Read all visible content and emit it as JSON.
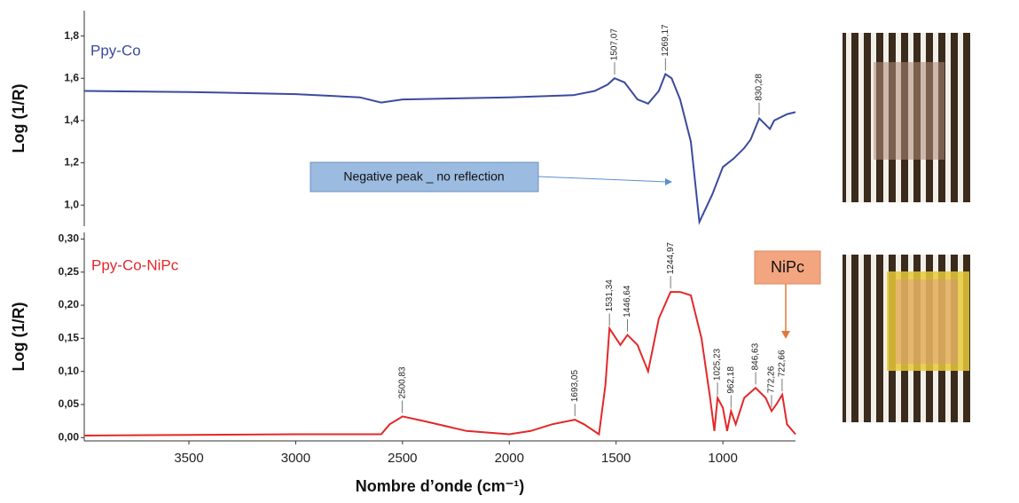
{
  "chart_data": [
    {
      "type": "line",
      "y_label": "Log (1/R)",
      "xlim": [
        3990,
        660
      ],
      "ylim": [
        0.9,
        1.92
      ],
      "yticks": [
        {
          "value": 1.0,
          "label": "1,0"
        },
        {
          "value": 1.2,
          "label": "1,2"
        },
        {
          "value": 1.4,
          "label": "1,4"
        },
        {
          "value": 1.6,
          "label": "1,6"
        },
        {
          "value": 1.8,
          "label": "1,8"
        }
      ],
      "x": [
        3990,
        3500,
        3000,
        2700,
        2600,
        2500,
        2000,
        1700,
        1600,
        1540,
        1507,
        1460,
        1400,
        1350,
        1300,
        1269,
        1240,
        1200,
        1150,
        1110,
        1050,
        1000,
        950,
        900,
        870,
        830,
        800,
        780,
        760,
        700,
        660
      ],
      "series": [
        {
          "name": "Ppy-Co",
          "color": "#3b4a9e",
          "values": [
            1.54,
            1.535,
            1.525,
            1.51,
            1.485,
            1.5,
            1.51,
            1.52,
            1.54,
            1.57,
            1.6,
            1.58,
            1.5,
            1.48,
            1.54,
            1.62,
            1.6,
            1.5,
            1.3,
            0.92,
            1.05,
            1.18,
            1.22,
            1.27,
            1.31,
            1.41,
            1.38,
            1.36,
            1.4,
            1.43,
            1.44
          ]
        }
      ],
      "peak_labels": [
        {
          "value": 1507.07,
          "label": "1507,07"
        },
        {
          "value": 1269.17,
          "label": "1269,17"
        },
        {
          "value": 830.28,
          "label": "830,28"
        }
      ],
      "annotation": "Negative peak _ no reflection"
    },
    {
      "type": "line",
      "y_label": "Log (1/R)",
      "x_label": "Nombre d’onde (cm⁻¹)",
      "xlim": [
        3990,
        660
      ],
      "ylim": [
        -0.005,
        0.31
      ],
      "xticks": [
        3500,
        3000,
        2500,
        2000,
        1500,
        1000
      ],
      "yticks": [
        {
          "value": 0,
          "label": "0,00"
        },
        {
          "value": 0.05,
          "label": "0,05"
        },
        {
          "value": 0.1,
          "label": "0,10"
        },
        {
          "value": 0.15,
          "label": "0,15"
        },
        {
          "value": 0.2,
          "label": "0,20"
        },
        {
          "value": 0.25,
          "label": "0,25"
        },
        {
          "value": 0.3,
          "label": "0,30"
        }
      ],
      "x": [
        3990,
        3500,
        3000,
        2600,
        2560,
        2500,
        2400,
        2200,
        2000,
        1900,
        1800,
        1693,
        1650,
        1580,
        1550,
        1531,
        1480,
        1447,
        1400,
        1350,
        1300,
        1245,
        1200,
        1150,
        1100,
        1060,
        1040,
        1025,
        1000,
        980,
        962,
        940,
        900,
        847,
        800,
        772,
        750,
        722,
        700,
        660
      ],
      "series": [
        {
          "name": "Ppy-Co-NiPc",
          "color": "#e3282a",
          "values": [
            0.003,
            0.004,
            0.005,
            0.005,
            0.02,
            0.032,
            0.025,
            0.01,
            0.005,
            0.01,
            0.02,
            0.027,
            0.02,
            0.005,
            0.08,
            0.165,
            0.14,
            0.155,
            0.14,
            0.1,
            0.18,
            0.22,
            0.22,
            0.215,
            0.15,
            0.06,
            0.01,
            0.06,
            0.045,
            0.01,
            0.04,
            0.02,
            0.06,
            0.075,
            0.06,
            0.04,
            0.05,
            0.065,
            0.02,
            0.005
          ]
        }
      ],
      "peak_labels": [
        {
          "value": 2500.83,
          "label": "2500,83"
        },
        {
          "value": 1693.05,
          "label": "1693,05"
        },
        {
          "value": 1531.34,
          "label": "1531,34"
        },
        {
          "value": 1446.64,
          "label": "1446,64"
        },
        {
          "value": 1244.97,
          "label": "1244,97"
        },
        {
          "value": 1025.23,
          "label": "1025,23"
        },
        {
          "value": 962.18,
          "label": "962,18"
        },
        {
          "value": 846.63,
          "label": "846,63"
        },
        {
          "value": 772.26,
          "label": "772,26"
        },
        {
          "value": 722.66,
          "label": "722,66"
        }
      ],
      "annotation": "NiPc"
    }
  ]
}
